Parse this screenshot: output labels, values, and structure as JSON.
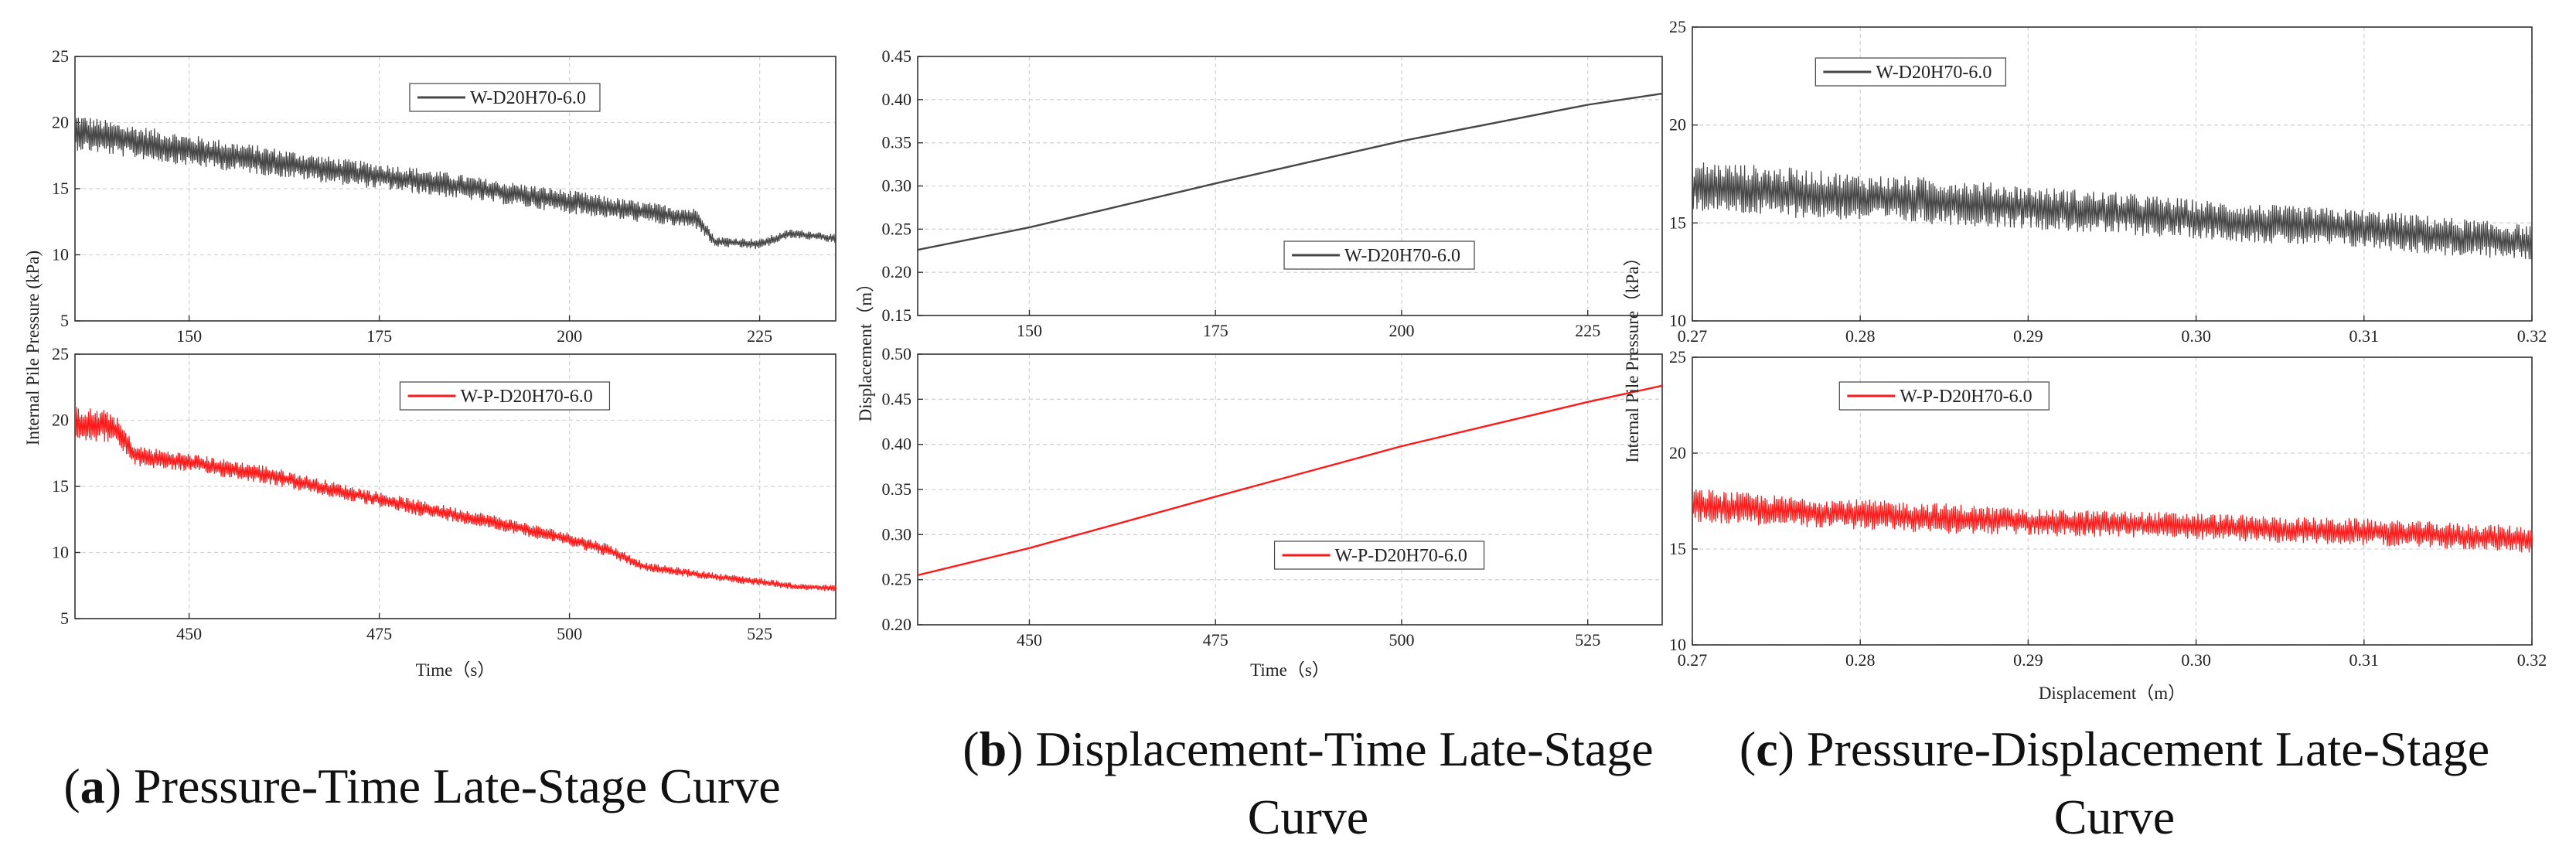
{
  "captions": {
    "a": {
      "letter": "a",
      "title": "Pressure-Time Late-Stage Curve"
    },
    "b": {
      "letter": "b",
      "title_line1": "Displacement-Time Late-Stage",
      "title_line2": "Curve"
    },
    "c": {
      "letter": "c",
      "title_line1": "Pressure-Displacement Late-Stage",
      "title_line2": "Curve"
    }
  },
  "colors": {
    "series_dark": "#474747",
    "series_red": "#ff1a1a",
    "grid": "#d4d4d4",
    "frame": "#333333"
  },
  "chart_data": [
    {
      "id": "a-top",
      "type": "line",
      "xlim": [
        135,
        235
      ],
      "ylim": [
        5,
        25
      ],
      "grid": true,
      "legend_position": "top-center",
      "xticks": [
        150,
        175,
        200,
        225
      ],
      "yticks": [
        5,
        10,
        15,
        20,
        25
      ],
      "xlabel": "",
      "ylabel": "Internal Pile Pressure (kPa)",
      "series": [
        {
          "name": "W-D20H70-6.0",
          "color": "#474747",
          "x": [
            135,
            140,
            150,
            160,
            170,
            180,
            190,
            200,
            210,
            217,
            219,
            225,
            229,
            233,
            235
          ],
          "y": [
            19.3,
            18.8,
            17.9,
            17.1,
            16.3,
            15.6,
            14.8,
            14.0,
            13.2,
            12.7,
            11.0,
            10.8,
            11.6,
            11.4,
            11.2
          ],
          "noise": [
            1.4,
            1.3,
            1.2,
            1.1,
            1.0,
            1.0,
            0.9,
            0.9,
            0.8,
            0.8,
            0.4,
            0.4,
            0.35,
            0.35,
            0.35
          ]
        }
      ]
    },
    {
      "id": "a-bottom",
      "type": "line",
      "xlim": [
        435,
        535
      ],
      "ylim": [
        5,
        25
      ],
      "grid": true,
      "legend_position": "top-center",
      "xticks": [
        450,
        475,
        500,
        525
      ],
      "yticks": [
        5,
        10,
        15,
        20,
        25
      ],
      "xlabel": "Time（s）",
      "ylabel": "",
      "series": [
        {
          "name": "W-P-D20H70-6.0",
          "color": "#ff1a1a",
          "x": [
            435,
            440,
            443,
            450,
            460,
            470,
            480,
            490,
            500,
            505,
            510,
            520,
            525,
            530,
            535
          ],
          "y": [
            19.8,
            19.5,
            17.3,
            16.8,
            15.9,
            14.6,
            13.4,
            12.3,
            11.0,
            10.2,
            8.9,
            8.1,
            7.8,
            7.4,
            7.3
          ],
          "noise": [
            1.3,
            1.2,
            0.8,
            0.7,
            0.7,
            0.6,
            0.6,
            0.55,
            0.5,
            0.5,
            0.35,
            0.3,
            0.3,
            0.25,
            0.25
          ]
        }
      ]
    },
    {
      "id": "b-top",
      "type": "line",
      "xlim": [
        135,
        235
      ],
      "ylim": [
        0.15,
        0.45
      ],
      "grid": true,
      "legend_position": "center-right",
      "xticks": [
        150,
        175,
        200,
        225
      ],
      "yticks": [
        0.15,
        0.2,
        0.25,
        0.3,
        0.35,
        0.4,
        0.45
      ],
      "xlabel": "",
      "ylabel": "Displacement（m）",
      "series": [
        {
          "name": "W-D20H70-6.0",
          "color": "#474747",
          "x": [
            135,
            150,
            175,
            200,
            225,
            235
          ],
          "y": [
            0.226,
            0.252,
            0.303,
            0.352,
            0.394,
            0.407
          ]
        }
      ]
    },
    {
      "id": "b-bottom",
      "type": "line",
      "xlim": [
        435,
        535
      ],
      "ylim": [
        0.2,
        0.5
      ],
      "grid": true,
      "legend_position": "bottom-right",
      "xticks": [
        450,
        475,
        500,
        525
      ],
      "yticks": [
        0.2,
        0.25,
        0.3,
        0.35,
        0.4,
        0.45,
        0.5
      ],
      "xlabel": "Time（s）",
      "ylabel": "",
      "series": [
        {
          "name": "W-P-D20H70-6.0",
          "color": "#ff1a1a",
          "x": [
            435,
            450,
            475,
            500,
            525,
            535
          ],
          "y": [
            0.255,
            0.285,
            0.342,
            0.398,
            0.447,
            0.465
          ]
        }
      ]
    },
    {
      "id": "c-top",
      "type": "line",
      "xlim": [
        0.27,
        0.32
      ],
      "ylim": [
        10,
        25
      ],
      "grid": true,
      "legend_position": "top-left",
      "xticks": [
        0.27,
        0.28,
        0.29,
        0.3,
        0.31,
        0.32
      ],
      "yticks": [
        10,
        15,
        20,
        25
      ],
      "xlabel": "",
      "ylabel": "Internal Pile Pressure（kPa）",
      "series": [
        {
          "name": "W-D20H70-6.0",
          "color": "#474747",
          "x": [
            0.27,
            0.275,
            0.28,
            0.285,
            0.29,
            0.295,
            0.3,
            0.305,
            0.31,
            0.315,
            0.32
          ],
          "y": [
            16.9,
            16.6,
            16.3,
            16.1,
            15.8,
            15.5,
            15.2,
            14.9,
            14.7,
            14.3,
            14.0
          ],
          "noise": [
            1.3,
            1.3,
            1.2,
            1.2,
            1.1,
            1.1,
            1.0,
            1.0,
            1.0,
            1.0,
            0.9
          ]
        }
      ]
    },
    {
      "id": "c-bottom",
      "type": "line",
      "xlim": [
        0.27,
        0.32
      ],
      "ylim": [
        10,
        25
      ],
      "grid": true,
      "legend_position": "top-center",
      "xticks": [
        0.27,
        0.28,
        0.29,
        0.3,
        0.31,
        0.32
      ],
      "yticks": [
        10,
        15,
        20,
        25
      ],
      "xlabel": "Displacement（m）",
      "ylabel": "",
      "series": [
        {
          "name": "W-P-D20H70-6.0",
          "color": "#ff1a1a",
          "x": [
            0.27,
            0.275,
            0.28,
            0.285,
            0.29,
            0.295,
            0.3,
            0.305,
            0.31,
            0.315,
            0.32
          ],
          "y": [
            17.3,
            17.0,
            16.8,
            16.6,
            16.4,
            16.3,
            16.2,
            16.0,
            15.9,
            15.7,
            15.5
          ],
          "noise": [
            0.9,
            0.8,
            0.8,
            0.8,
            0.7,
            0.7,
            0.7,
            0.7,
            0.7,
            0.7,
            0.7
          ]
        }
      ]
    }
  ]
}
